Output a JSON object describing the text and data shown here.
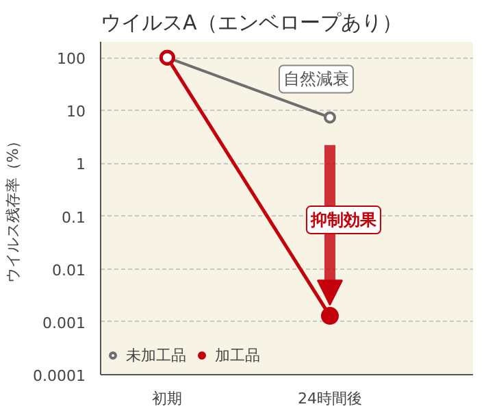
{
  "chart_data": {
    "type": "line",
    "title": "ウイルスA（エンベロープあり）",
    "ylabel": "ウイルス残存率（%）",
    "categories": [
      "初期",
      "24時間後"
    ],
    "log": true,
    "ylim": [
      0.0001,
      200
    ],
    "yticks": [
      100,
      10,
      1,
      0.1,
      0.01,
      0.001,
      0.0001
    ],
    "grid": "y",
    "legend": "bottom left",
    "marker": "circle",
    "line_style": "solid",
    "series": [
      {
        "name": "未加工品",
        "color": "#6e6e6e",
        "values": [
          100,
          7.4
        ]
      },
      {
        "name": "加工品",
        "color": "#c4000b",
        "values": [
          100,
          0.0013
        ]
      }
    ],
    "annotations": [
      "自然減衰",
      "抑制効果"
    ]
  }
}
